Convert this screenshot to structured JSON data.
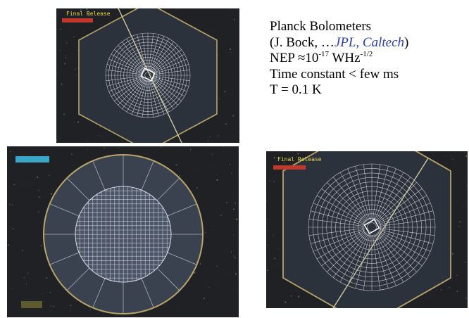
{
  "caption": {
    "title": "Planck Bolometers",
    "credit_prefix": "(J. Bock, …",
    "credit_institutions": "JPL, Caltech",
    "credit_suffix": ")",
    "nep_prefix": "NEP ≈10",
    "nep_exp1": "-17",
    "nep_unit": " WHz",
    "nep_exp2": "-1/2",
    "time_constant": "Time constant < few ms",
    "temperature": "T = 0.1 K"
  },
  "photos": {
    "top": {
      "overlay_label": "Final Release"
    },
    "bottom_left": {
      "overlay_label": ""
    },
    "bottom_right": {
      "overlay_label": "Final Release"
    }
  },
  "colors": {
    "accent": "#2f3f9b",
    "photo_background": "#1f2124",
    "chip_surface": "#3a4250",
    "mesh_line": "#d8dde6",
    "frame_gold": "#b9a46a",
    "overlay_text": "#e6d94a",
    "overlay_box": "#3aa6c8"
  }
}
